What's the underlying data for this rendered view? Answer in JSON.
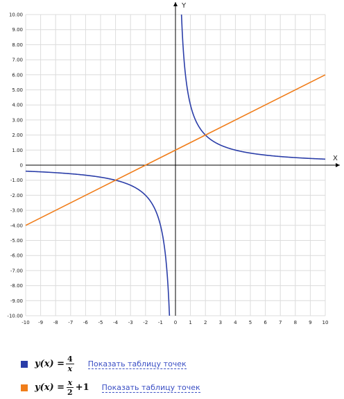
{
  "chart_data": {
    "type": "line",
    "xlabel": "X",
    "ylabel": "Y",
    "xlim": [
      -10,
      10
    ],
    "ylim": [
      -10,
      10
    ],
    "grid": true,
    "x_ticks": [
      "-10",
      "-9",
      "-8",
      "-7",
      "-6",
      "-5",
      "-4",
      "-3",
      "-2",
      "-1",
      "0",
      "1",
      "2",
      "3",
      "4",
      "5",
      "6",
      "7",
      "8",
      "9",
      "10"
    ],
    "y_ticks": [
      "10.00",
      "9.00",
      "8.00",
      "7.00",
      "6.00",
      "5.00",
      "4.00",
      "3.00",
      "2.00",
      "1.00",
      "0",
      "-1.00",
      "-2.00",
      "-3.00",
      "-4.00",
      "-5.00",
      "-6.00",
      "-7.00",
      "-8.00",
      "-9.00",
      "-10.00"
    ],
    "series": [
      {
        "formula": "y(x) = 4/x",
        "color": "#2a3da8",
        "x": [
          -10,
          -8,
          -6,
          -5,
          -4,
          -3,
          -2,
          -1.5,
          -1,
          -0.8,
          -0.6,
          -0.5,
          -0.4,
          0.4,
          0.5,
          0.6,
          0.8,
          1,
          1.5,
          2,
          3,
          4,
          5,
          6,
          8,
          10
        ],
        "y": [
          -0.4,
          -0.5,
          -0.67,
          -0.8,
          -1,
          -1.33,
          -2,
          -2.67,
          -4,
          -5,
          -6.67,
          -8,
          -10,
          10,
          8,
          6.67,
          5,
          4,
          2.67,
          2,
          1.33,
          1,
          0.8,
          0.67,
          0.5,
          0.4
        ]
      },
      {
        "formula": "y(x) = x/2 + 1",
        "color": "#f07d1a",
        "x": [
          -10,
          10
        ],
        "y": [
          -4,
          6
        ]
      }
    ]
  },
  "legend": {
    "items": [
      {
        "lhs": "y(x) =",
        "num": "4",
        "den": "x",
        "suffix": "",
        "link": "Показать таблицу точек"
      },
      {
        "lhs": "y(x) =",
        "num": "x",
        "den": "2",
        "suffix": "+1",
        "link": "Показать таблицу точек"
      }
    ]
  }
}
